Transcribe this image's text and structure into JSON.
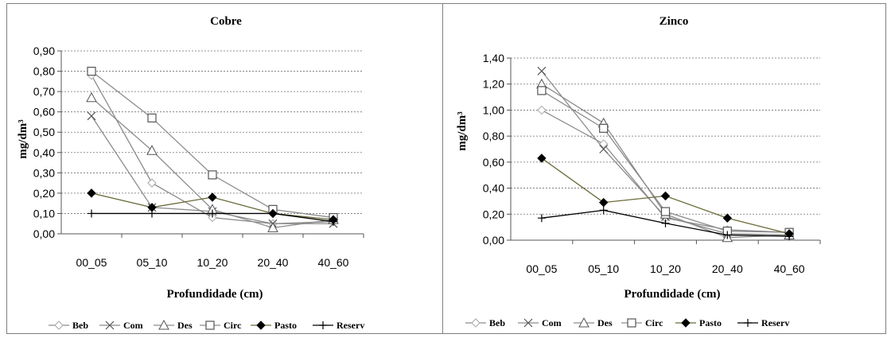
{
  "chart_data": [
    {
      "type": "line",
      "title": "Cobre",
      "xlabel": "Profundidade (cm)",
      "ylabel": "mg/dm³",
      "categories": [
        "00_05",
        "05_10",
        "10_20",
        "20_40",
        "40_60"
      ],
      "ylim": [
        0,
        0.9
      ],
      "yticks": [
        "0,00",
        "0,10",
        "0,20",
        "0,30",
        "0,40",
        "0,50",
        "0,60",
        "0,70",
        "0,80",
        "0,90"
      ],
      "grid": "horizontal dashed",
      "legend": "bottom",
      "series": [
        {
          "name": "Beb",
          "marker": "diamond-open",
          "color": "#a6a6a6",
          "values": [
            0.78,
            0.25,
            0.08,
            0.05,
            0.06
          ]
        },
        {
          "name": "Com",
          "marker": "x",
          "color": "#7f7f7f",
          "values": [
            0.58,
            0.13,
            0.11,
            0.05,
            0.05
          ]
        },
        {
          "name": "Des",
          "marker": "triangle-open",
          "color": "#7f7f7f",
          "values": [
            0.67,
            0.41,
            0.12,
            0.03,
            0.07
          ]
        },
        {
          "name": "Circ",
          "marker": "square-open",
          "color": "#8c8c8c",
          "values": [
            0.8,
            0.57,
            0.29,
            0.12,
            0.08
          ]
        },
        {
          "name": "Pasto",
          "marker": "diamond-filled",
          "color": "#6b6b3a",
          "values": [
            0.2,
            0.13,
            0.18,
            0.1,
            0.07
          ]
        },
        {
          "name": "Reserv",
          "marker": "plus",
          "color": "#000000",
          "values": [
            0.1,
            0.1,
            0.1,
            0.1,
            0.06
          ]
        }
      ]
    },
    {
      "type": "line",
      "title": "Zinco",
      "xlabel": "Profundidade (cm)",
      "ylabel": "mg/dm³",
      "categories": [
        "00_05",
        "05_10",
        "10_20",
        "20_40",
        "40_60"
      ],
      "ylim": [
        0,
        1.4
      ],
      "yticks": [
        "0,00",
        "0,20",
        "0,40",
        "0,60",
        "0,80",
        "1,00",
        "1,20",
        "1,40"
      ],
      "grid": "horizontal dashed",
      "legend": "bottom",
      "series": [
        {
          "name": "Beb",
          "marker": "diamond-open",
          "color": "#a6a6a6",
          "values": [
            1.0,
            0.74,
            0.17,
            0.08,
            0.06
          ]
        },
        {
          "name": "Com",
          "marker": "x",
          "color": "#7f7f7f",
          "values": [
            1.3,
            0.7,
            0.18,
            0.05,
            0.04
          ]
        },
        {
          "name": "Des",
          "marker": "triangle-open",
          "color": "#7f7f7f",
          "values": [
            1.2,
            0.9,
            0.2,
            0.02,
            0.04
          ]
        },
        {
          "name": "Circ",
          "marker": "square-open",
          "color": "#8c8c8c",
          "values": [
            1.15,
            0.86,
            0.22,
            0.07,
            0.06
          ]
        },
        {
          "name": "Pasto",
          "marker": "diamond-filled",
          "color": "#6b6b3a",
          "values": [
            0.63,
            0.29,
            0.34,
            0.17,
            0.05
          ]
        },
        {
          "name": "Reserv",
          "marker": "plus",
          "color": "#000000",
          "values": [
            0.17,
            0.23,
            0.13,
            0.04,
            0.03
          ]
        }
      ]
    }
  ]
}
